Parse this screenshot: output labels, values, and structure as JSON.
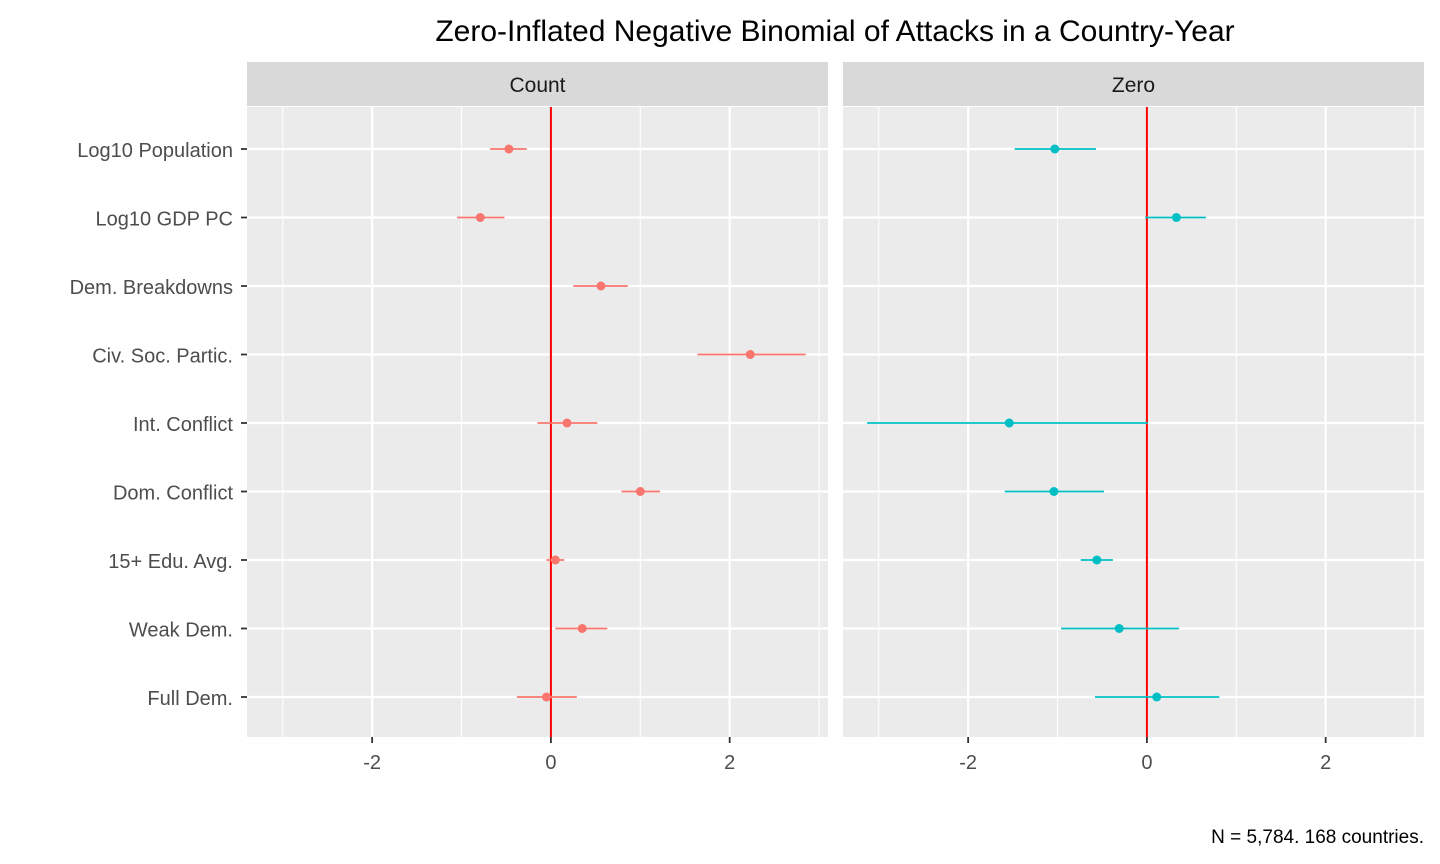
{
  "chart_data": {
    "type": "scatter",
    "title": "Zero-Inflated Negative Binomial of Attacks in a Country-Year",
    "caption": "N = 5,784. 168 countries.",
    "xlabel": "",
    "ylabel": "",
    "categories": [
      "Log10 Population",
      "Log10 GDP PC",
      "Dem. Breakdowns",
      "Civ. Soc. Partic.",
      "Int. Conflict",
      "Dom. Conflict",
      "15+ Edu. Avg.",
      "Weak Dem.",
      "Full Dem."
    ],
    "xlim": [
      -3.4,
      3.1
    ],
    "x_ticks": [
      "-2",
      "0",
      "2"
    ],
    "x_tick_values": [
      -2,
      0,
      2
    ],
    "x_minor_values": [
      -3,
      -1,
      1,
      3
    ],
    "reference_line": 0,
    "reference_color": "#ff0000",
    "grid": true,
    "legend": "none",
    "panels": [
      {
        "name": "Count",
        "color": "#f8766d",
        "estimates": [
          -0.47,
          -0.79,
          0.56,
          2.23,
          0.18,
          1.0,
          0.05,
          0.35,
          -0.05
        ],
        "lower": [
          -0.68,
          -1.05,
          0.25,
          1.64,
          -0.15,
          0.79,
          -0.05,
          0.05,
          -0.38
        ],
        "upper": [
          -0.27,
          -0.52,
          0.86,
          2.85,
          0.52,
          1.22,
          0.15,
          0.63,
          0.29
        ]
      },
      {
        "name": "Zero",
        "color": "#00bfc4",
        "estimates": [
          -1.03,
          0.33,
          null,
          null,
          -1.54,
          -1.04,
          -0.56,
          -0.31,
          0.11
        ],
        "lower": [
          -1.48,
          -0.02,
          null,
          null,
          -3.13,
          -1.59,
          -0.74,
          -0.96,
          -0.58
        ],
        "upper": [
          -0.57,
          0.66,
          null,
          null,
          0.01,
          -0.48,
          -0.38,
          0.36,
          0.81
        ]
      }
    ]
  },
  "colors": {
    "panel_background": "#ebebeb",
    "strip_background": "#d9d9d9",
    "grid": "#ffffff"
  }
}
